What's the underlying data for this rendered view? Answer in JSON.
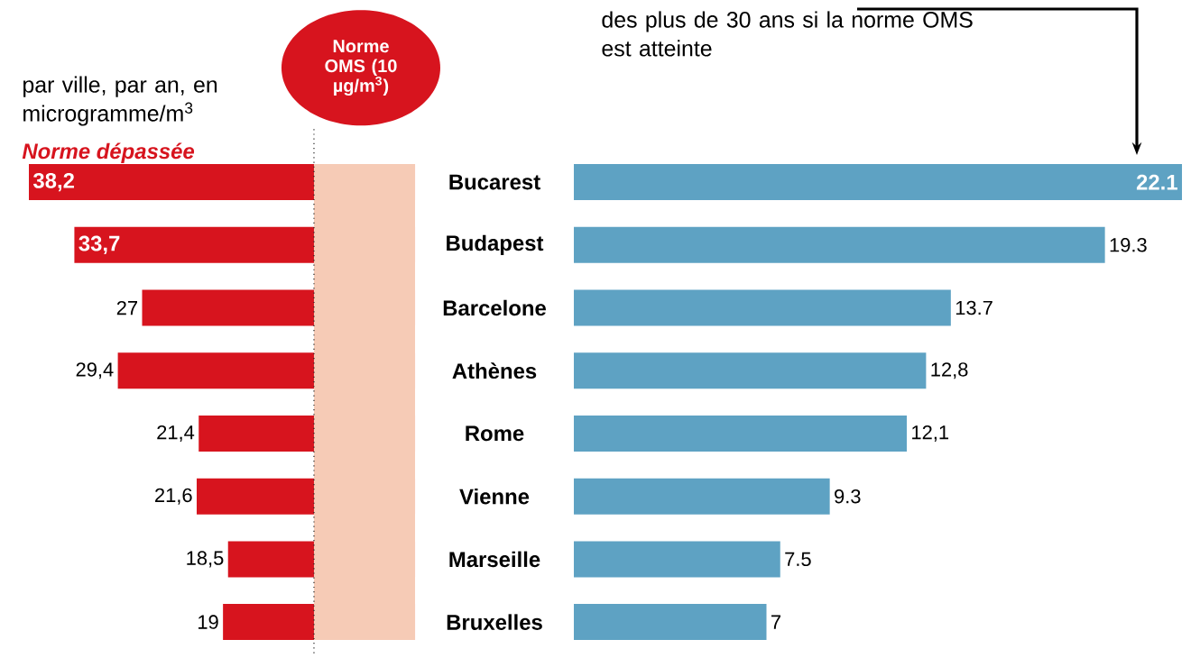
{
  "chart_data": [
    {
      "type": "bar",
      "orientation": "horizontal",
      "subtitle": "par ville, par an, en microgramme/m$^{3}$",
      "annotations": [
        "Norme dépassée"
      ],
      "categories": [
        "Bucarest",
        "Budapest",
        "Barcelone",
        "Athènes",
        "Rome",
        "Vienne",
        "Marseille",
        "Bruxelles"
      ],
      "xlim": [
        38.2,
        0
      ],
      "color": "#d7141e",
      "values": [
        38.2,
        33.7,
        27,
        29.4,
        21.4,
        21.6,
        18.5,
        19
      ],
      "value_labels": [
        "38,2",
        "33,7",
        "27",
        "29,4",
        "21,4",
        "21,6",
        "18,5",
        "19"
      ],
      "bands": [
        {
          "axis": "x",
          "from": 0,
          "to": 10,
          "color": "#f6cbb6"
        }
      ],
      "ref_lines": [
        {
          "axis": "x",
          "value": 10,
          "label": "Norme OMS (10 µg/m$^{3}$)",
          "color": "#222222",
          "line_style": "dotted"
        }
      ]
    },
    {
      "type": "bar",
      "orientation": "horizontal",
      "subtitle": "des plus de 30 ans si la norme OMS est atteinte",
      "categories": [
        null,
        null,
        null,
        null,
        null,
        null,
        null,
        null
      ],
      "xlim": [
        0,
        22.1
      ],
      "color": "#5ea2c3",
      "values": [
        22.1,
        19.3,
        13.7,
        12.8,
        12.1,
        9.3,
        7.5,
        7
      ],
      "value_labels": [
        "22.1",
        "19.3",
        "13.7",
        "12,8",
        "12,1",
        "9.3",
        "7.5",
        "7"
      ]
    }
  ]
}
